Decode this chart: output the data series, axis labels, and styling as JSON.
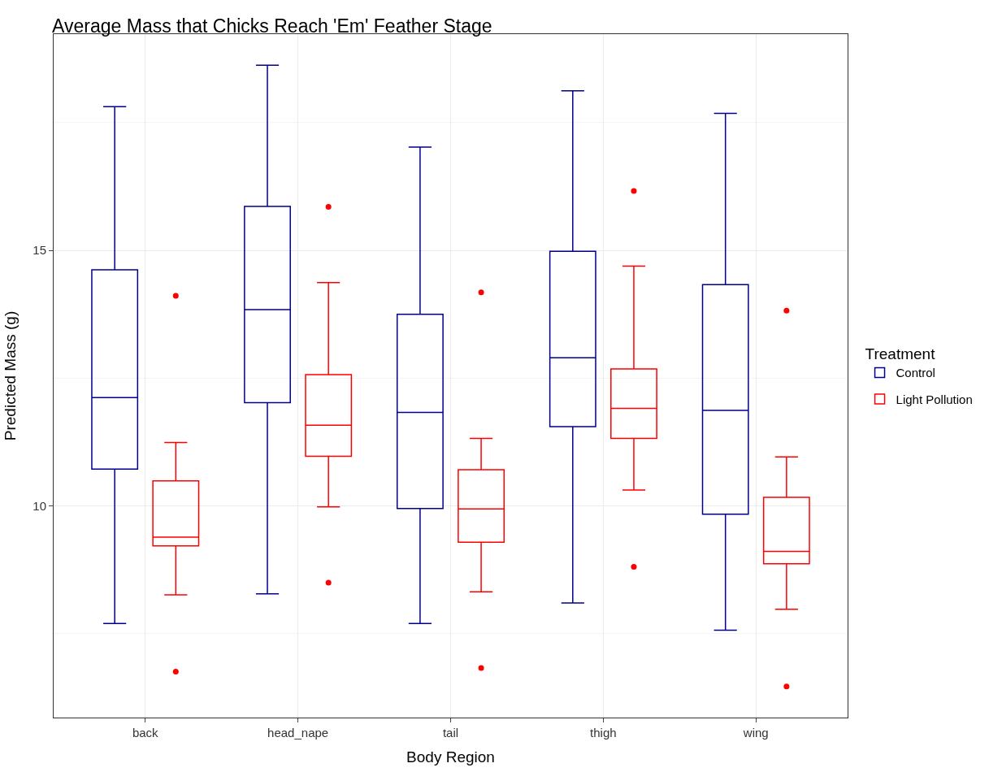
{
  "chart_data": {
    "type": "box",
    "title": "Average Mass that Chicks Reach 'Em' Feather Stage",
    "xlabel": "Body Region",
    "ylabel": "Predicted Mass (g)",
    "legend_title": "Treatment",
    "categories": [
      "back",
      "head_nape",
      "tail",
      "thigh",
      "wing"
    ],
    "ylim": [
      5.86,
      19.23
    ],
    "yticks": [
      10,
      15
    ],
    "grid": true,
    "legend": "right",
    "series": [
      {
        "name": "Control",
        "color": "#00008b",
        "boxes": [
          {
            "low": 7.7,
            "q1": 10.72,
            "median": 12.12,
            "q3": 14.62,
            "high": 17.81
          },
          {
            "low": 8.28,
            "q1": 12.02,
            "median": 13.84,
            "q3": 15.86,
            "high": 18.62
          },
          {
            "low": 7.7,
            "q1": 9.95,
            "median": 11.83,
            "q3": 13.75,
            "high": 17.02
          },
          {
            "low": 8.1,
            "q1": 11.55,
            "median": 12.9,
            "q3": 14.98,
            "high": 18.12
          },
          {
            "low": 7.57,
            "q1": 9.84,
            "median": 11.87,
            "q3": 14.33,
            "high": 17.68
          }
        ]
      },
      {
        "name": "Light Pollution",
        "color": "#ff0000",
        "boxes": [
          {
            "low": 8.26,
            "q1": 9.22,
            "median": 9.39,
            "q3": 10.49,
            "high": 11.24,
            "outliers": [
              14.11,
              6.76
            ]
          },
          {
            "low": 9.98,
            "q1": 10.97,
            "median": 11.58,
            "q3": 12.57,
            "high": 14.37,
            "outliers": [
              15.85,
              8.5
            ]
          },
          {
            "low": 8.32,
            "q1": 9.29,
            "median": 9.94,
            "q3": 10.71,
            "high": 11.32,
            "outliers": [
              14.18,
              6.83
            ]
          },
          {
            "low": 10.31,
            "q1": 11.32,
            "median": 11.91,
            "q3": 12.68,
            "high": 14.69,
            "outliers": [
              16.16,
              8.81
            ]
          },
          {
            "low": 7.98,
            "q1": 8.87,
            "median": 9.11,
            "q3": 10.17,
            "high": 10.96,
            "outliers": [
              13.82,
              6.47
            ]
          }
        ]
      }
    ]
  }
}
